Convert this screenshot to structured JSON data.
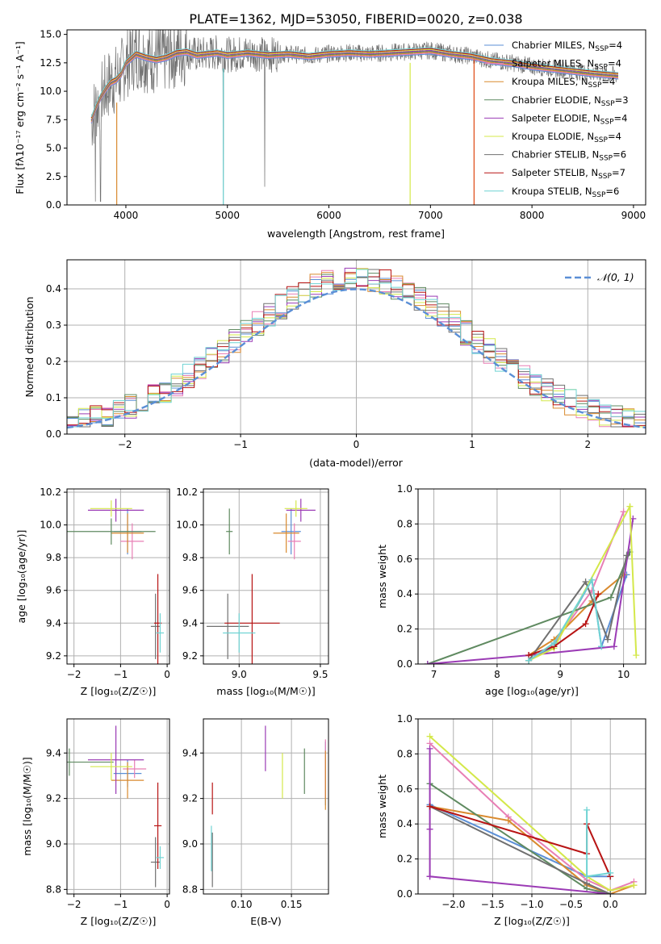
{
  "title": "PLATE=1362, MJD=53050, FIBERID=0020, z=0.038",
  "colors": {
    "c1": "#5b8fd6",
    "c2": "#e87fb5",
    "c3": "#d98a2e",
    "c4": "#5f8a60",
    "c5": "#9b3bb5",
    "c6": "#d4e84a",
    "c7": "#707070",
    "c8": "#b81414",
    "c9": "#6fd3d3",
    "grid": "#b0b0b0"
  },
  "chart_data": [
    {
      "id": "spectrum",
      "type": "line",
      "xlabel": "wavelength [Angstrom, rest frame]",
      "ylabel": "Flux [fλ10⁻¹⁷ erg cm⁻² s⁻¹ A⁻¹]",
      "xlim": [
        3420,
        9120
      ],
      "ylim": [
        0,
        15.4
      ],
      "xticks": [
        4000,
        5000,
        6000,
        7000,
        8000,
        9000
      ],
      "yticks": [
        "0.0",
        "2.5",
        "5.0",
        "7.5",
        "10.0",
        "12.5",
        "15.0"
      ],
      "legend": "top-right",
      "series": [
        {
          "name": "Chabrier MILES, N_SSP=4",
          "color": "c1"
        },
        {
          "name": "Salpeter MILES, N_SSP=4",
          "color": "c2"
        },
        {
          "name": "Kroupa MILES, N_SSP=4",
          "color": "c3"
        },
        {
          "name": "Chabrier ELODIE, N_SSP=3",
          "color": "c4"
        },
        {
          "name": "Salpeter ELODIE, N_SSP=4",
          "color": "c5"
        },
        {
          "name": "Kroupa ELODIE, N_SSP=4",
          "color": "c6"
        },
        {
          "name": "Chabrier STELIB, N_SSP=6",
          "color": "c7"
        },
        {
          "name": "Salpeter STELIB, N_SSP=7",
          "color": "c8"
        },
        {
          "name": "Kroupa STELIB, N_SSP=6",
          "color": "c9"
        }
      ],
      "model_x": [
        3660,
        3700,
        3750,
        3800,
        3850,
        3900,
        3950,
        4000,
        4100,
        4200,
        4300,
        4400,
        4500,
        4600,
        4700,
        4800,
        4900,
        5000,
        5200,
        5400,
        5600,
        5800,
        6000,
        6200,
        6400,
        6600,
        6800,
        7000,
        7200,
        7400,
        7600,
        7800,
        8000,
        8200,
        8400,
        8600,
        8850
      ],
      "model_y": [
        7.5,
        8.5,
        9.5,
        10.2,
        10.8,
        11.0,
        11.5,
        12.5,
        13.3,
        13.0,
        12.8,
        13.0,
        13.4,
        13.5,
        13.2,
        13.3,
        13.4,
        13.2,
        13.4,
        13.2,
        13.3,
        13.1,
        13.3,
        13.4,
        13.3,
        13.4,
        13.5,
        13.6,
        13.3,
        13.1,
        12.7,
        12.5,
        12.2,
        12.0,
        11.8,
        11.6,
        11.4
      ]
    },
    {
      "id": "residual",
      "type": "line",
      "xlabel": "(data-model)/error",
      "ylabel": "Normed distribution",
      "xlim": [
        -2.5,
        2.5
      ],
      "ylim": [
        0,
        0.48
      ],
      "xticks": [
        "−2",
        "−1",
        "0",
        "1",
        "2"
      ],
      "yticks": [
        "0.0",
        "0.1",
        "0.2",
        "0.3",
        "0.4"
      ],
      "legend": "top-right",
      "legend_label": "N(0,1)"
    },
    {
      "id": "zage",
      "type": "scatter",
      "xlabel": "Z [log10(Z/Z☉)]",
      "ylabel": "age  [log10(age/yr)]",
      "xlim": [
        -2.15,
        0.05
      ],
      "ylim": [
        9.15,
        10.22
      ],
      "xticks": [
        "−2",
        "−1",
        "0"
      ],
      "yticks": [
        "9.2",
        "9.4",
        "9.6",
        "9.8",
        "10.0",
        "10.2"
      ],
      "points": [
        {
          "x": -0.85,
          "y": 9.96,
          "xe": 0.3,
          "ye": 0.14,
          "color": "c1"
        },
        {
          "x": -0.75,
          "y": 9.9,
          "xe": 0.25,
          "ye": 0.11,
          "color": "c2"
        },
        {
          "x": -0.85,
          "y": 9.95,
          "xe": 0.35,
          "ye": 0.12,
          "color": "c3"
        },
        {
          "x": -1.2,
          "y": 9.96,
          "xe": 0.95,
          "ye": 0.08,
          "color": "c4"
        },
        {
          "x": -1.1,
          "y": 10.09,
          "xe": 0.6,
          "ye": 0.07,
          "color": "c5"
        },
        {
          "x": -1.2,
          "y": 10.1,
          "xe": 0.45,
          "ye": 0.05,
          "color": "c6"
        },
        {
          "x": -0.25,
          "y": 9.38,
          "xe": 0.1,
          "ye": 0.2,
          "color": "c7"
        },
        {
          "x": -0.2,
          "y": 9.4,
          "xe": 0.08,
          "ye": 0.3,
          "color": "c8"
        },
        {
          "x": -0.15,
          "y": 9.34,
          "xe": 0.08,
          "ye": 0.12,
          "color": "c9"
        }
      ]
    },
    {
      "id": "massage",
      "type": "scatter",
      "xlabel": "mass [log10(M/M☉)]",
      "ylabel": "",
      "xlim": [
        8.78,
        9.55
      ],
      "ylim": [
        9.15,
        10.22
      ],
      "xticks": [
        "9.0",
        "9.5"
      ],
      "yticks": [
        "9.2",
        "9.4",
        "9.6",
        "9.8",
        "10.0",
        "10.2"
      ],
      "points": [
        {
          "x": 9.32,
          "y": 9.96,
          "xe": 0.06,
          "ye": 0.14,
          "color": "c1"
        },
        {
          "x": 9.34,
          "y": 9.9,
          "xe": 0.04,
          "ye": 0.11,
          "color": "c2"
        },
        {
          "x": 9.29,
          "y": 9.95,
          "xe": 0.08,
          "ye": 0.12,
          "color": "c3"
        },
        {
          "x": 8.94,
          "y": 9.96,
          "xe": 0.02,
          "ye": 0.14,
          "color": "c4"
        },
        {
          "x": 9.38,
          "y": 10.09,
          "xe": 0.09,
          "ye": 0.07,
          "color": "c5"
        },
        {
          "x": 9.35,
          "y": 10.1,
          "xe": 0.07,
          "ye": 0.05,
          "color": "c6"
        },
        {
          "x": 8.93,
          "y": 9.38,
          "xe": 0.13,
          "ye": 0.2,
          "color": "c7"
        },
        {
          "x": 9.08,
          "y": 9.4,
          "xe": 0.17,
          "ye": 0.3,
          "color": "c8"
        },
        {
          "x": 9.0,
          "y": 9.34,
          "xe": 0.1,
          "ye": 0.12,
          "color": "c9"
        }
      ]
    },
    {
      "id": "agew",
      "type": "line",
      "xlabel": "age  [log10(age/yr)]",
      "ylabel": "mass weight",
      "xlim": [
        6.75,
        10.35
      ],
      "ylim": [
        0,
        1.0
      ],
      "xticks": [
        "7",
        "8",
        "9",
        "10"
      ],
      "yticks": [
        "0.0",
        "0.2",
        "0.4",
        "0.6",
        "0.8",
        "1.0"
      ],
      "series": [
        {
          "color": "c1",
          "x": [
            8.5,
            8.9,
            9.5,
            9.65,
            10.05
          ],
          "y": [
            0.02,
            0.1,
            0.48,
            0.1,
            0.51
          ]
        },
        {
          "color": "c2",
          "x": [
            8.5,
            8.9,
            9.5,
            10.0
          ],
          "y": [
            0.02,
            0.12,
            0.42,
            0.87
          ]
        },
        {
          "color": "c3",
          "x": [
            8.5,
            8.9,
            9.5,
            10.0
          ],
          "y": [
            0.05,
            0.14,
            0.36,
            0.51
          ]
        },
        {
          "color": "c4",
          "x": [
            6.9,
            9.8,
            10.1
          ],
          "y": [
            0.0,
            0.38,
            0.64
          ]
        },
        {
          "color": "c5",
          "x": [
            6.9,
            8.5,
            9.85,
            10.15
          ],
          "y": [
            0.0,
            0.05,
            0.1,
            0.83
          ]
        },
        {
          "color": "c6",
          "x": [
            8.5,
            8.9,
            10.1,
            10.2
          ],
          "y": [
            0.02,
            0.09,
            0.9,
            0.05
          ]
        },
        {
          "color": "c7",
          "x": [
            8.5,
            9.4,
            9.75,
            10.05
          ],
          "y": [
            0.02,
            0.47,
            0.14,
            0.62
          ]
        },
        {
          "color": "c8",
          "x": [
            8.5,
            8.9,
            9.4,
            9.6
          ],
          "y": [
            0.05,
            0.1,
            0.23,
            0.4
          ]
        },
        {
          "color": "c9",
          "x": [
            8.5,
            8.9,
            9.5,
            9.65
          ],
          "y": [
            0.02,
            0.12,
            0.48,
            0.1
          ]
        }
      ]
    },
    {
      "id": "zmass",
      "type": "scatter",
      "xlabel": "Z [log10(Z/Z☉)]",
      "ylabel": "mass [log10(M/M☉)]",
      "xlim": [
        -2.15,
        0.05
      ],
      "ylim": [
        8.78,
        9.55
      ],
      "xticks": [
        "−2",
        "−1",
        "0"
      ],
      "yticks": [
        "8.8",
        "9.0",
        "9.2",
        "9.4"
      ],
      "points": [
        {
          "x": -0.85,
          "y": 9.31,
          "xe": 0.3,
          "ye": 0.06,
          "color": "c1"
        },
        {
          "x": -0.7,
          "y": 9.33,
          "xe": 0.25,
          "ye": 0.04,
          "color": "c2"
        },
        {
          "x": -0.85,
          "y": 9.28,
          "xe": 0.35,
          "ye": 0.08,
          "color": "c3"
        },
        {
          "x": -2.1,
          "y": 9.36,
          "xe": 0.95,
          "ye": 0.06,
          "color": "c4"
        },
        {
          "x": -1.1,
          "y": 9.37,
          "xe": 0.6,
          "ye": 0.15,
          "color": "c5"
        },
        {
          "x": -1.2,
          "y": 9.34,
          "xe": 0.45,
          "ye": 0.06,
          "color": "c6"
        },
        {
          "x": -0.25,
          "y": 8.92,
          "xe": 0.1,
          "ye": 0.11,
          "color": "c7"
        },
        {
          "x": -0.2,
          "y": 9.08,
          "xe": 0.08,
          "ye": 0.19,
          "color": "c8"
        },
        {
          "x": -0.15,
          "y": 8.94,
          "xe": 0.08,
          "ye": 0.05,
          "color": "c9"
        }
      ]
    },
    {
      "id": "ebv",
      "type": "scatter",
      "xlabel": "E(B-V)",
      "ylabel": "",
      "xlim": [
        0.062,
        0.187
      ],
      "ylim": [
        8.78,
        9.55
      ],
      "xticks": [
        "0.10",
        "0.15"
      ],
      "yticks": [
        "8.8",
        "9.0",
        "9.2",
        "9.4"
      ],
      "points": [
        {
          "x": 0.184,
          "y": 9.31,
          "ye": 0.14,
          "color": "c1"
        },
        {
          "x": 0.184,
          "y": 9.33,
          "ye": 0.13,
          "color": "c2"
        },
        {
          "x": 0.184,
          "y": 9.28,
          "ye": 0.13,
          "color": "c3"
        },
        {
          "x": 0.163,
          "y": 9.32,
          "ye": 0.1,
          "color": "c4"
        },
        {
          "x": 0.124,
          "y": 9.42,
          "ye": 0.1,
          "color": "c5"
        },
        {
          "x": 0.141,
          "y": 9.3,
          "ye": 0.1,
          "color": "c6"
        },
        {
          "x": 0.071,
          "y": 8.93,
          "ye": 0.12,
          "color": "c7"
        },
        {
          "x": 0.071,
          "y": 9.2,
          "ye": 0.07,
          "color": "c8"
        },
        {
          "x": 0.07,
          "y": 8.98,
          "ye": 0.1,
          "color": "c9"
        }
      ]
    },
    {
      "id": "zw",
      "type": "line",
      "xlabel": "Z [log10(Z/Z☉)]",
      "ylabel": "mass weight",
      "xlim": [
        -2.45,
        0.45
      ],
      "ylim": [
        0,
        1.0
      ],
      "xticks": [
        "−2.0",
        "−1.5",
        "−1.0",
        "−0.5",
        "0.0"
      ],
      "yticks": [
        "0.0",
        "0.2",
        "0.4",
        "0.6",
        "0.8",
        "1.0"
      ],
      "series": [
        {
          "color": "c1",
          "x": [
            -2.3,
            -0.3,
            0.0
          ],
          "y": [
            0.51,
            0.1,
            0.1
          ]
        },
        {
          "color": "c2",
          "x": [
            -2.3,
            -1.3,
            -0.3,
            0.0,
            0.3
          ],
          "y": [
            0.86,
            0.44,
            0.08,
            0.02,
            0.07
          ]
        },
        {
          "color": "c3",
          "x": [
            -2.3,
            -1.3,
            -0.3,
            0.0,
            0.3
          ],
          "y": [
            0.5,
            0.42,
            0.05,
            0.0,
            0.05
          ]
        },
        {
          "color": "c4",
          "x": [
            -2.3,
            -0.3,
            0.0
          ],
          "y": [
            0.63,
            0.03,
            0.0
          ]
        },
        {
          "color": "c5",
          "x": [
            -2.3,
            -2.3,
            -2.3,
            0.0,
            -2.3
          ],
          "y": [
            0.83,
            0.37,
            0.1,
            0.0,
            0.1
          ]
        },
        {
          "color": "c6",
          "x": [
            -2.3,
            -0.3,
            0.0,
            0.3
          ],
          "y": [
            0.9,
            0.1,
            0.02,
            0.05
          ]
        },
        {
          "color": "c7",
          "x": [
            -2.3,
            -0.3,
            0.0
          ],
          "y": [
            0.5,
            0.06,
            0.0
          ]
        },
        {
          "color": "c8",
          "x": [
            -2.3,
            -0.3,
            -0.3,
            0.0
          ],
          "y": [
            0.5,
            0.23,
            0.4,
            0.1
          ]
        },
        {
          "color": "c9",
          "x": [
            -0.3,
            -0.3,
            0.0
          ],
          "y": [
            0.48,
            0.1,
            0.12
          ]
        }
      ]
    }
  ]
}
